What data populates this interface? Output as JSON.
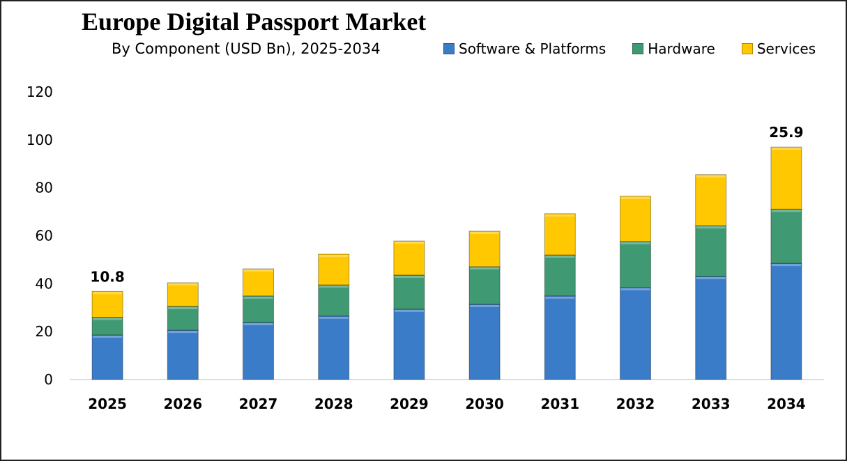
{
  "chart_data": {
    "type": "bar",
    "stacked": true,
    "title": "Europe Digital Passport Market",
    "subtitle": "By Component (USD Bn), 2025-2034",
    "xlabel": "",
    "ylabel": "",
    "ylim": [
      0,
      120
    ],
    "yticks": [
      0,
      20,
      40,
      60,
      80,
      100,
      120
    ],
    "grid": false,
    "legend": "top-right",
    "categories": [
      "2025",
      "2026",
      "2027",
      "2028",
      "2029",
      "2030",
      "2031",
      "2032",
      "2033",
      "2034"
    ],
    "series": [
      {
        "name": "Software & Platforms",
        "color": "#3a7cc8",
        "values": [
          18.6,
          20.6,
          23.8,
          26.5,
          29.4,
          31.4,
          34.9,
          38.4,
          43.0,
          48.5
        ]
      },
      {
        "name": "Hardware",
        "color": "#3f9a73",
        "values": [
          7.4,
          9.9,
          11.1,
          13.0,
          14.2,
          15.7,
          17.1,
          19.2,
          21.2,
          22.6
        ]
      },
      {
        "name": "Services",
        "color": "#ffc800",
        "values": [
          10.8,
          9.9,
          11.3,
          12.8,
          14.2,
          14.8,
          17.2,
          18.9,
          21.3,
          25.9
        ]
      }
    ],
    "annotations": [
      {
        "category": "2025",
        "text": "10.8"
      },
      {
        "category": "2034",
        "text": "25.9"
      }
    ]
  }
}
